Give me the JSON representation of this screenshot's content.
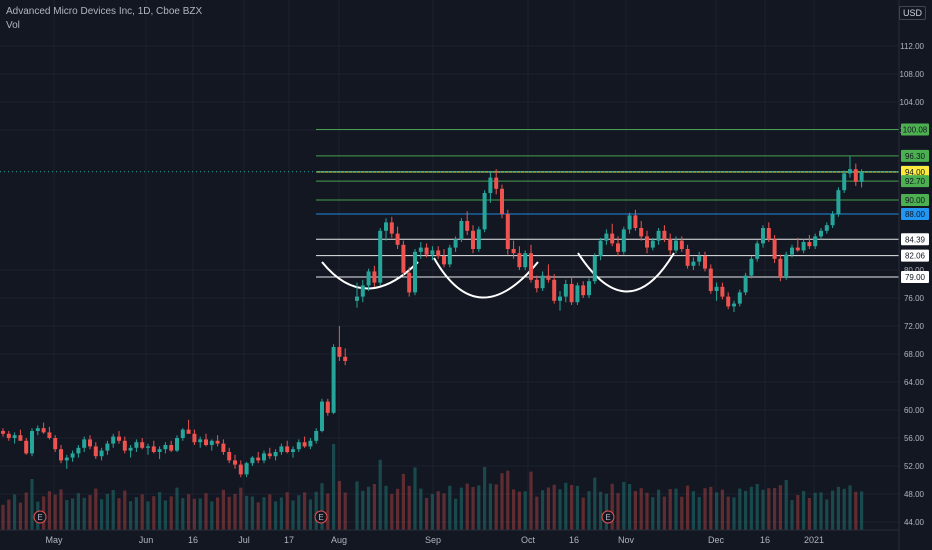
{
  "header": {
    "title": "Advanced Micro Devices Inc, 1D, Cboe BZX",
    "volume_label": "Vol",
    "currency": "USD"
  },
  "chart_data": {
    "type": "candlestick",
    "ylim": [
      44,
      112
    ],
    "y_ticks": [
      44,
      48,
      52,
      56,
      60,
      64,
      68,
      72,
      76,
      80,
      100,
      104,
      108,
      112
    ],
    "x_ticks": [
      "May",
      "Jun",
      "16",
      "Jul",
      "17",
      "Aug",
      "Sep",
      "Oct",
      "16",
      "Nov",
      "Dec",
      "16",
      "2021"
    ],
    "earnings_marker": "E",
    "horizontal_levels": [
      {
        "value": 100.08,
        "label": "100.08",
        "color": "#4caf50"
      },
      {
        "value": 96.3,
        "label": "96.30",
        "color": "#4caf50"
      },
      {
        "value": 94.04,
        "label": "94.04",
        "color": "#26a69a"
      },
      {
        "value": 94.0,
        "label": "94.00",
        "color": "#ffeb3b"
      },
      {
        "value": 92.7,
        "label": "92.70",
        "color": "#4caf50"
      },
      {
        "value": 90.0,
        "label": "90.00",
        "color": "#4caf50"
      },
      {
        "value": 88.0,
        "label": "88.00",
        "color": "#2196f3"
      },
      {
        "value": 84.39,
        "label": "84.39",
        "color": "#ffffff"
      },
      {
        "value": 82.06,
        "label": "82.06",
        "color": "#ffffff"
      },
      {
        "value": 79.0,
        "label": "79.00",
        "color": "#ffffff"
      }
    ],
    "candles": [
      [
        57.0,
        57.4,
        56.2,
        56.6
      ],
      [
        56.6,
        57.0,
        55.6,
        56.0
      ],
      [
        56.0,
        56.8,
        55.2,
        56.4
      ],
      [
        56.4,
        57.2,
        55.8,
        55.6
      ],
      [
        55.6,
        56.0,
        53.6,
        53.8
      ],
      [
        53.8,
        57.4,
        53.4,
        57.0
      ],
      [
        57.0,
        57.8,
        56.4,
        57.4
      ],
      [
        57.4,
        58.2,
        56.6,
        56.8
      ],
      [
        56.8,
        57.6,
        55.8,
        56.0
      ],
      [
        56.0,
        56.4,
        54.0,
        54.4
      ],
      [
        54.4,
        55.0,
        52.4,
        52.8
      ],
      [
        52.8,
        53.6,
        51.6,
        53.2
      ],
      [
        53.2,
        54.2,
        52.6,
        53.8
      ],
      [
        53.8,
        55.0,
        53.2,
        54.6
      ],
      [
        54.6,
        56.2,
        54.0,
        55.8
      ],
      [
        55.8,
        56.4,
        54.4,
        54.8
      ],
      [
        54.8,
        55.4,
        53.0,
        53.4
      ],
      [
        53.4,
        54.6,
        52.8,
        54.2
      ],
      [
        54.2,
        55.6,
        53.6,
        55.2
      ],
      [
        55.2,
        56.6,
        54.6,
        56.2
      ],
      [
        56.2,
        57.0,
        55.2,
        55.6
      ],
      [
        55.6,
        56.2,
        53.8,
        54.2
      ],
      [
        54.2,
        55.0,
        53.2,
        54.6
      ],
      [
        54.6,
        55.8,
        54.0,
        55.4
      ],
      [
        55.4,
        56.0,
        54.4,
        54.6
      ],
      [
        54.6,
        55.2,
        53.6,
        54.8
      ],
      [
        54.8,
        55.6,
        53.8,
        54.0
      ],
      [
        54.0,
        54.8,
        53.0,
        54.4
      ],
      [
        54.4,
        55.4,
        53.8,
        55.0
      ],
      [
        55.0,
        55.6,
        54.0,
        54.2
      ],
      [
        54.2,
        56.4,
        54.0,
        56.0
      ],
      [
        56.0,
        57.4,
        55.6,
        57.2
      ],
      [
        57.2,
        58.6,
        56.8,
        56.6
      ],
      [
        56.6,
        57.2,
        55.0,
        55.4
      ],
      [
        55.4,
        56.2,
        54.6,
        55.8
      ],
      [
        55.8,
        56.6,
        54.8,
        55.0
      ],
      [
        55.0,
        55.8,
        54.2,
        55.6
      ],
      [
        55.6,
        56.4,
        54.8,
        55.2
      ],
      [
        55.2,
        55.8,
        53.6,
        54.0
      ],
      [
        54.0,
        54.6,
        52.4,
        52.8
      ],
      [
        52.8,
        53.6,
        51.6,
        52.2
      ],
      [
        52.2,
        52.8,
        50.4,
        50.8
      ],
      [
        50.8,
        52.6,
        50.4,
        52.4
      ],
      [
        52.4,
        53.4,
        52.0,
        53.2
      ],
      [
        53.2,
        54.0,
        52.4,
        52.8
      ],
      [
        52.8,
        54.2,
        52.4,
        53.8
      ],
      [
        53.8,
        54.6,
        53.0,
        53.4
      ],
      [
        53.4,
        54.4,
        52.8,
        54.0
      ],
      [
        54.0,
        55.2,
        53.6,
        54.8
      ],
      [
        54.8,
        55.6,
        53.8,
        54.0
      ],
      [
        54.0,
        54.8,
        53.2,
        54.4
      ],
      [
        54.4,
        55.8,
        54.0,
        55.4
      ],
      [
        55.4,
        56.2,
        54.6,
        54.8
      ],
      [
        54.8,
        56.0,
        54.4,
        55.6
      ],
      [
        55.6,
        57.4,
        55.2,
        57.0
      ],
      [
        57.0,
        61.6,
        56.8,
        61.2
      ],
      [
        61.2,
        61.6,
        59.2,
        59.6
      ],
      [
        59.6,
        69.4,
        59.4,
        69.0
      ],
      [
        69.0,
        72.0,
        67.0,
        67.6
      ],
      [
        67.6,
        68.8,
        66.4,
        67.0
      ],
      [
        75.6,
        78.2,
        74.6,
        76.2
      ],
      [
        76.2,
        78.6,
        75.4,
        77.8
      ],
      [
        77.8,
        80.2,
        77.0,
        79.8
      ],
      [
        79.8,
        80.6,
        77.6,
        78.2
      ],
      [
        78.2,
        86.0,
        77.8,
        85.6
      ],
      [
        85.6,
        87.4,
        84.2,
        86.8
      ],
      [
        86.8,
        87.6,
        84.6,
        85.2
      ],
      [
        85.2,
        86.2,
        83.0,
        83.6
      ],
      [
        83.6,
        84.2,
        79.2,
        79.6
      ],
      [
        79.6,
        80.4,
        76.2,
        76.8
      ],
      [
        76.8,
        83.0,
        76.4,
        82.6
      ],
      [
        82.6,
        84.0,
        81.6,
        83.2
      ],
      [
        83.2,
        83.8,
        81.8,
        82.2
      ],
      [
        82.2,
        83.4,
        81.4,
        82.8
      ],
      [
        82.8,
        83.4,
        81.6,
        82.0
      ],
      [
        82.0,
        83.0,
        80.4,
        80.8
      ],
      [
        80.8,
        83.6,
        80.4,
        83.2
      ],
      [
        83.2,
        84.8,
        82.6,
        84.4
      ],
      [
        84.4,
        87.4,
        84.0,
        87.0
      ],
      [
        87.0,
        88.4,
        85.0,
        85.6
      ],
      [
        85.6,
        86.4,
        82.4,
        83.0
      ],
      [
        83.0,
        86.2,
        82.6,
        85.8
      ],
      [
        85.8,
        91.4,
        85.4,
        91.0
      ],
      [
        91.0,
        94.0,
        89.6,
        93.2
      ],
      [
        93.2,
        94.4,
        90.8,
        91.6
      ],
      [
        91.6,
        92.2,
        87.4,
        88.0
      ],
      [
        88.0,
        88.6,
        82.2,
        83.0
      ],
      [
        83.0,
        84.2,
        81.6,
        82.4
      ],
      [
        82.4,
        83.4,
        80.0,
        80.4
      ],
      [
        80.4,
        82.8,
        80.0,
        82.4
      ],
      [
        82.4,
        83.6,
        78.2,
        78.6
      ],
      [
        78.6,
        79.2,
        76.8,
        77.4
      ],
      [
        77.4,
        79.8,
        77.0,
        79.2
      ],
      [
        79.2,
        80.8,
        78.2,
        78.6
      ],
      [
        78.6,
        79.4,
        75.2,
        75.6
      ],
      [
        75.6,
        77.0,
        74.2,
        76.2
      ],
      [
        76.2,
        78.6,
        75.4,
        78.0
      ],
      [
        78.0,
        79.0,
        75.0,
        75.4
      ],
      [
        75.4,
        78.2,
        75.0,
        77.8
      ],
      [
        77.8,
        78.4,
        76.0,
        76.4
      ],
      [
        76.4,
        78.8,
        76.0,
        78.4
      ],
      [
        78.4,
        82.4,
        78.0,
        82.0
      ],
      [
        82.0,
        84.6,
        81.4,
        84.2
      ],
      [
        84.2,
        85.8,
        83.6,
        85.2
      ],
      [
        85.2,
        86.6,
        83.4,
        83.8
      ],
      [
        83.8,
        84.8,
        82.0,
        82.6
      ],
      [
        82.6,
        86.2,
        82.2,
        85.8
      ],
      [
        85.8,
        88.2,
        85.2,
        87.8
      ],
      [
        87.8,
        88.6,
        85.6,
        86.0
      ],
      [
        86.0,
        87.0,
        84.2,
        84.8
      ],
      [
        84.8,
        85.6,
        82.4,
        83.2
      ],
      [
        83.2,
        84.6,
        82.8,
        84.2
      ],
      [
        84.2,
        86.0,
        83.6,
        85.6
      ],
      [
        85.6,
        86.4,
        84.0,
        84.4
      ],
      [
        84.4,
        85.2,
        82.2,
        82.8
      ],
      [
        82.8,
        84.8,
        82.4,
        84.2
      ],
      [
        84.2,
        84.8,
        82.6,
        83.0
      ],
      [
        83.0,
        83.6,
        80.2,
        80.6
      ],
      [
        80.6,
        81.8,
        80.0,
        81.2
      ],
      [
        81.2,
        82.6,
        80.6,
        82.0
      ],
      [
        82.0,
        82.6,
        79.8,
        80.2
      ],
      [
        80.2,
        80.8,
        76.6,
        77.0
      ],
      [
        77.0,
        78.2,
        75.6,
        77.6
      ],
      [
        77.6,
        78.2,
        75.8,
        76.2
      ],
      [
        76.2,
        76.8,
        74.4,
        74.8
      ],
      [
        74.8,
        75.6,
        74.0,
        75.2
      ],
      [
        75.2,
        77.2,
        74.8,
        76.8
      ],
      [
        76.8,
        79.6,
        76.4,
        79.2
      ],
      [
        79.2,
        82.0,
        78.8,
        81.6
      ],
      [
        81.6,
        84.2,
        81.2,
        83.8
      ],
      [
        83.8,
        86.4,
        83.2,
        86.0
      ],
      [
        86.0,
        86.8,
        84.0,
        84.4
      ],
      [
        84.4,
        85.0,
        81.0,
        81.6
      ],
      [
        81.6,
        82.2,
        78.4,
        79.0
      ],
      [
        79.0,
        82.6,
        78.6,
        82.2
      ],
      [
        82.2,
        83.6,
        81.8,
        83.2
      ],
      [
        83.2,
        84.6,
        82.6,
        82.8
      ],
      [
        82.8,
        84.4,
        82.4,
        84.0
      ],
      [
        84.0,
        85.0,
        83.0,
        83.4
      ],
      [
        83.4,
        85.2,
        83.0,
        84.8
      ],
      [
        84.8,
        86.0,
        84.4,
        85.6
      ],
      [
        85.6,
        86.8,
        85.2,
        86.4
      ],
      [
        86.4,
        88.4,
        86.0,
        88.0
      ],
      [
        88.0,
        91.8,
        87.6,
        91.4
      ],
      [
        91.4,
        94.2,
        91.0,
        93.8
      ],
      [
        93.8,
        96.3,
        93.2,
        94.4
      ],
      [
        94.4,
        95.2,
        92.0,
        92.6
      ],
      [
        92.6,
        94.4,
        91.8,
        94.0
      ]
    ]
  }
}
